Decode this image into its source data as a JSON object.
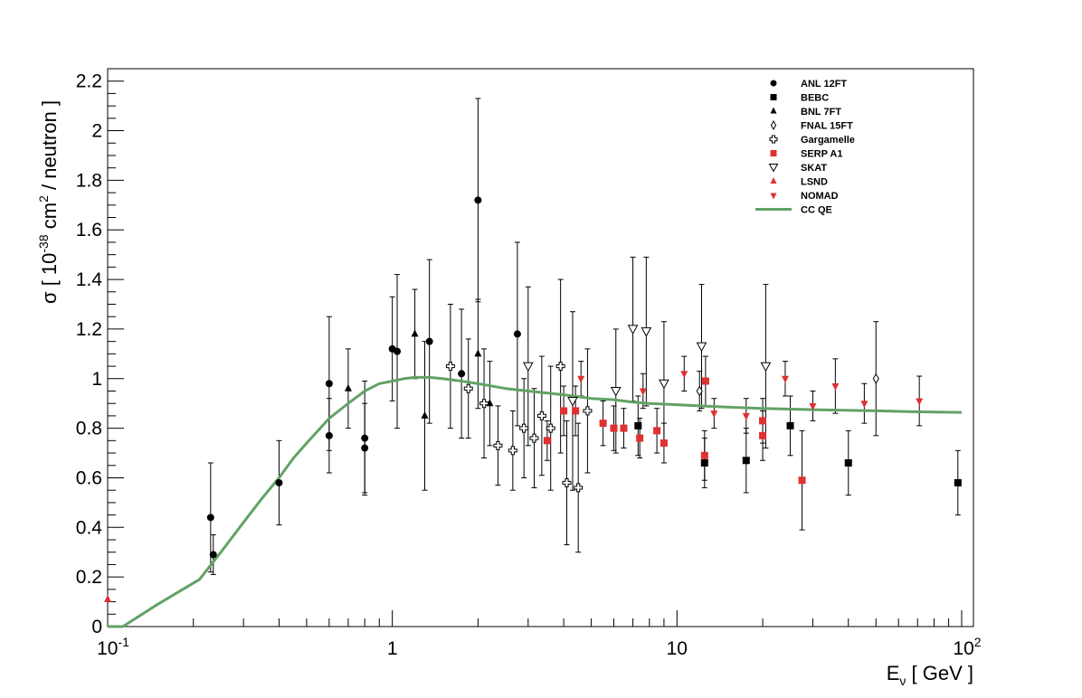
{
  "chart_data": {
    "type": "scatter",
    "title": "",
    "xlabel": {
      "main": "E",
      "sub": "ν",
      "unit": "[ GeV ]"
    },
    "ylabel": {
      "pre": "σ  [ 10",
      "sup1": "-38",
      "mid": " cm",
      "sup2": "2",
      "post": " / neutron ]"
    },
    "xscale": "log",
    "xlim": [
      0.1,
      110
    ],
    "ylim": [
      0,
      2.25
    ],
    "x_ticks": [
      {
        "value": 0.1,
        "base": "10",
        "exp": "-1"
      },
      {
        "value": 1,
        "base": "1",
        "exp": ""
      },
      {
        "value": 10,
        "base": "10",
        "exp": ""
      },
      {
        "value": 100,
        "base": "10",
        "exp": "2"
      }
    ],
    "y_ticks": [
      {
        "value": 0,
        "label": "0"
      },
      {
        "value": 0.2,
        "label": "0.2"
      },
      {
        "value": 0.4,
        "label": "0.4"
      },
      {
        "value": 0.6,
        "label": "0.6"
      },
      {
        "value": 0.8,
        "label": "0.8"
      },
      {
        "value": 1.0,
        "label": "1"
      },
      {
        "value": 1.2,
        "label": "1.2"
      },
      {
        "value": 1.4,
        "label": "1.4"
      },
      {
        "value": 1.6,
        "label": "1.6"
      },
      {
        "value": 1.8,
        "label": "1.8"
      },
      {
        "value": 2.0,
        "label": "2"
      },
      {
        "value": 2.2,
        "label": "2.2"
      }
    ],
    "legend_position": "top-right",
    "grid": false,
    "series": [
      {
        "name": "ANL 12FT",
        "marker": "circle",
        "color": "#000000",
        "points": [
          {
            "x": 0.23,
            "y": 0.44,
            "err": 0.22
          },
          {
            "x": 0.235,
            "y": 0.29,
            "err": 0.08
          },
          {
            "x": 0.4,
            "y": 0.58,
            "err": 0.17
          },
          {
            "x": 0.6,
            "y": 0.98,
            "err": 0.27
          },
          {
            "x": 0.6,
            "y": 0.77,
            "err": 0.15
          },
          {
            "x": 0.8,
            "y": 0.76,
            "err": 0.23
          },
          {
            "x": 0.8,
            "y": 0.72,
            "err": 0.18
          },
          {
            "x": 1.0,
            "y": 1.12,
            "err": 0.21
          },
          {
            "x": 1.04,
            "y": 1.11,
            "err": 0.31
          },
          {
            "x": 1.35,
            "y": 1.15,
            "err": 0.33
          },
          {
            "x": 1.75,
            "y": 1.02,
            "err": 0.26
          },
          {
            "x": 2.0,
            "y": 1.72,
            "err": 0.41
          },
          {
            "x": 2.75,
            "y": 1.18,
            "err": 0.37
          }
        ]
      },
      {
        "name": "BEBC",
        "marker": "square",
        "color": "#000000",
        "points": [
          {
            "x": 7.3,
            "y": 0.81,
            "err": 0.12
          },
          {
            "x": 12.5,
            "y": 0.66,
            "err": 0.1
          },
          {
            "x": 17.5,
            "y": 0.67,
            "err": 0.13
          },
          {
            "x": 25,
            "y": 0.81,
            "err": 0.12
          },
          {
            "x": 40,
            "y": 0.66,
            "err": 0.13
          },
          {
            "x": 97,
            "y": 0.58,
            "err": 0.13
          }
        ]
      },
      {
        "name": "BNL 7FT",
        "marker": "triangle-up",
        "color": "#000000",
        "points": [
          {
            "x": 0.7,
            "y": 0.96,
            "err": 0.16
          },
          {
            "x": 1.2,
            "y": 1.18,
            "err": 0.18
          },
          {
            "x": 1.3,
            "y": 0.85,
            "err": 0.3
          },
          {
            "x": 2.0,
            "y": 1.1,
            "err": 0.22
          },
          {
            "x": 2.2,
            "y": 0.9,
            "err": 0.17
          }
        ]
      },
      {
        "name": "FNAL 15FT",
        "marker": "diamond-open",
        "color": "#000000",
        "points": [
          {
            "x": 12,
            "y": 0.95,
            "err": 0.08
          },
          {
            "x": 50,
            "y": 1.0,
            "err": 0.23
          }
        ]
      },
      {
        "name": "Gargamelle",
        "marker": "cross-open",
        "color": "#000000",
        "points": [
          {
            "x": 1.6,
            "y": 1.05,
            "err": 0.25
          },
          {
            "x": 1.85,
            "y": 0.96,
            "err": 0.2
          },
          {
            "x": 2.1,
            "y": 0.9,
            "err": 0.22
          },
          {
            "x": 2.35,
            "y": 0.73,
            "err": 0.16
          },
          {
            "x": 2.65,
            "y": 0.71,
            "err": 0.16
          },
          {
            "x": 2.9,
            "y": 0.8,
            "err": 0.2
          },
          {
            "x": 3.15,
            "y": 0.76,
            "err": 0.2
          },
          {
            "x": 3.35,
            "y": 0.85,
            "err": 0.24
          },
          {
            "x": 3.6,
            "y": 0.8,
            "err": 0.25
          },
          {
            "x": 3.9,
            "y": 1.05,
            "err": 0.35
          },
          {
            "x": 4.1,
            "y": 0.58,
            "err": 0.25
          },
          {
            "x": 4.5,
            "y": 0.56,
            "err": 0.26
          },
          {
            "x": 4.85,
            "y": 0.87,
            "err": 0.25
          }
        ]
      },
      {
        "name": "SERP A1",
        "marker": "square",
        "color": "#e03030",
        "points": [
          {
            "x": 3.5,
            "y": 0.75,
            "err": 0.08
          },
          {
            "x": 4.0,
            "y": 0.87,
            "err": 0.1
          },
          {
            "x": 4.4,
            "y": 0.87,
            "err": 0.1
          },
          {
            "x": 5.5,
            "y": 0.82,
            "err": 0.09
          },
          {
            "x": 6.0,
            "y": 0.8,
            "err": 0.09
          },
          {
            "x": 6.5,
            "y": 0.8,
            "err": 0.08
          },
          {
            "x": 7.4,
            "y": 0.76,
            "err": 0.08
          },
          {
            "x": 8.5,
            "y": 0.79,
            "err": 0.09
          },
          {
            "x": 9.0,
            "y": 0.74,
            "err": 0.08
          },
          {
            "x": 12.6,
            "y": 0.99,
            "err": 0.1
          },
          {
            "x": 12.5,
            "y": 0.69,
            "err": 0.1
          },
          {
            "x": 20,
            "y": 0.83,
            "err": 0.09
          },
          {
            "x": 20,
            "y": 0.77,
            "err": 0.1
          },
          {
            "x": 27.5,
            "y": 0.59,
            "err": 0.2
          }
        ]
      },
      {
        "name": "SKAT",
        "marker": "triangle-down-open",
        "color": "#000000",
        "points": [
          {
            "x": 3.0,
            "y": 1.05,
            "err": 0.32
          },
          {
            "x": 4.3,
            "y": 0.91,
            "err": 0.36
          },
          {
            "x": 6.1,
            "y": 0.95,
            "err": 0.25
          },
          {
            "x": 7.0,
            "y": 1.2,
            "err": 0.29
          },
          {
            "x": 7.8,
            "y": 1.19,
            "err": 0.3
          },
          {
            "x": 9.0,
            "y": 0.98,
            "err": 0.25
          },
          {
            "x": 12.2,
            "y": 1.13,
            "err": 0.25
          },
          {
            "x": 20.5,
            "y": 1.05,
            "err": 0.33
          }
        ]
      },
      {
        "name": "LSND",
        "marker": "triangle-up",
        "color": "#e03030",
        "points": [
          {
            "x": 0.1,
            "y": 0.11,
            "err": 0.0
          }
        ]
      },
      {
        "name": "NOMAD",
        "marker": "triangle-down",
        "color": "#e03030",
        "points": [
          {
            "x": 4.6,
            "y": 1.0,
            "err": 0.07
          },
          {
            "x": 7.6,
            "y": 0.95,
            "err": 0.07
          },
          {
            "x": 10.6,
            "y": 1.02,
            "err": 0.07
          },
          {
            "x": 13.5,
            "y": 0.86,
            "err": 0.06
          },
          {
            "x": 17.5,
            "y": 0.85,
            "err": 0.07
          },
          {
            "x": 24,
            "y": 1.0,
            "err": 0.07
          },
          {
            "x": 30,
            "y": 0.89,
            "err": 0.06
          },
          {
            "x": 36,
            "y": 0.97,
            "err": 0.11
          },
          {
            "x": 45.5,
            "y": 0.9,
            "err": 0.08
          },
          {
            "x": 71,
            "y": 0.91,
            "err": 0.1
          }
        ]
      }
    ],
    "curve": {
      "name": "CC QE",
      "color": "#62a266",
      "x": [
        0.1,
        0.113,
        0.15,
        0.21,
        0.25,
        0.3,
        0.35,
        0.4,
        0.45,
        0.5,
        0.6,
        0.7,
        0.8,
        0.9,
        1.0,
        1.1,
        1.2,
        1.35,
        1.5,
        1.75,
        2.0,
        2.5,
        3.0,
        4.0,
        5.0,
        6.0,
        7.0,
        8.0,
        10.0,
        12.0,
        15.0,
        20.0,
        30.0,
        50.0,
        70.0,
        100.0
      ],
      "y": [
        0.0,
        0.0,
        0.09,
        0.19,
        0.3,
        0.42,
        0.52,
        0.6,
        0.68,
        0.74,
        0.84,
        0.9,
        0.95,
        0.98,
        0.99,
        1.0,
        1.005,
        1.005,
        1.0,
        0.99,
        0.98,
        0.96,
        0.95,
        0.935,
        0.92,
        0.915,
        0.905,
        0.9,
        0.895,
        0.89,
        0.885,
        0.88,
        0.875,
        0.87,
        0.866,
        0.864
      ]
    }
  }
}
